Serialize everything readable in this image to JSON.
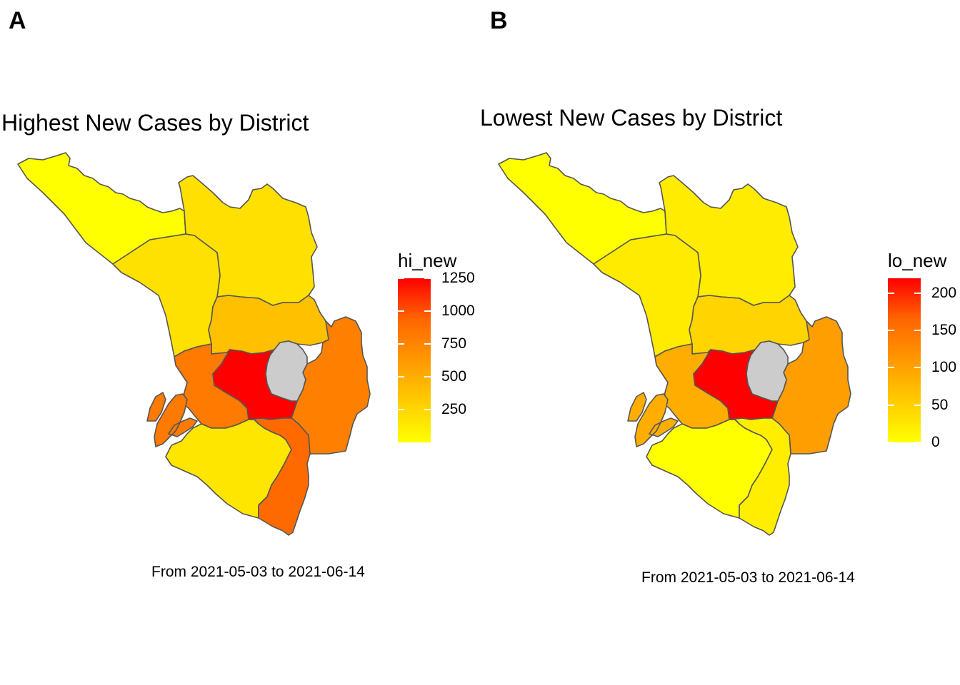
{
  "panels": [
    {
      "letter": "A",
      "title": "Highest New Cases by District",
      "caption": "From 2021-05-03 to 2021-06-14",
      "legend": {
        "title": "hi_new",
        "ticks": [
          "1250",
          "1000",
          "750",
          "500",
          "250"
        ],
        "tick_values": [
          1250,
          1000,
          750,
          500,
          250
        ],
        "range": [
          0,
          1250
        ],
        "colors": [
          "#ffff00",
          "#ffcc00",
          "#ff9900",
          "#ff6600",
          "#ff0000"
        ]
      },
      "districts": [
        {
          "id": "north-west",
          "fill": "#ffff00"
        },
        {
          "id": "north-east",
          "fill": "#ffe000"
        },
        {
          "id": "west-central",
          "fill": "#ffe100"
        },
        {
          "id": "central-north",
          "fill": "#ffc000"
        },
        {
          "id": "east",
          "fill": "#ff8000"
        },
        {
          "id": "west",
          "fill": "#ff7a00"
        },
        {
          "id": "center",
          "fill": "#ff0000"
        },
        {
          "id": "center-east",
          "fill": "#cccccc"
        },
        {
          "id": "south-west",
          "fill": "#ffe600"
        },
        {
          "id": "south",
          "fill": "#ff6a00"
        },
        {
          "id": "islands",
          "fill": "#ff7a00"
        }
      ]
    },
    {
      "letter": "B",
      "title": "Lowest New Cases by District",
      "caption": "From 2021-05-03 to 2021-06-14",
      "legend": {
        "title": "lo_new",
        "ticks": [
          "200",
          "150",
          "100",
          "50",
          "0"
        ],
        "tick_values": [
          200,
          150,
          100,
          50,
          0
        ],
        "range": [
          0,
          220
        ],
        "colors": [
          "#ffff00",
          "#ffcc00",
          "#ff9900",
          "#ff6600",
          "#ff0000"
        ]
      },
      "districts": [
        {
          "id": "north-west",
          "fill": "#ffff00"
        },
        {
          "id": "north-east",
          "fill": "#ffec00"
        },
        {
          "id": "west-central",
          "fill": "#ffeb00"
        },
        {
          "id": "central-north",
          "fill": "#ffd400"
        },
        {
          "id": "east",
          "fill": "#ff9e00"
        },
        {
          "id": "west",
          "fill": "#ffae00"
        },
        {
          "id": "center",
          "fill": "#ff0000"
        },
        {
          "id": "center-east",
          "fill": "#cccccc"
        },
        {
          "id": "south-west",
          "fill": "#ffff00"
        },
        {
          "id": "south",
          "fill": "#ffee00"
        },
        {
          "id": "islands",
          "fill": "#ffae00"
        }
      ]
    }
  ]
}
